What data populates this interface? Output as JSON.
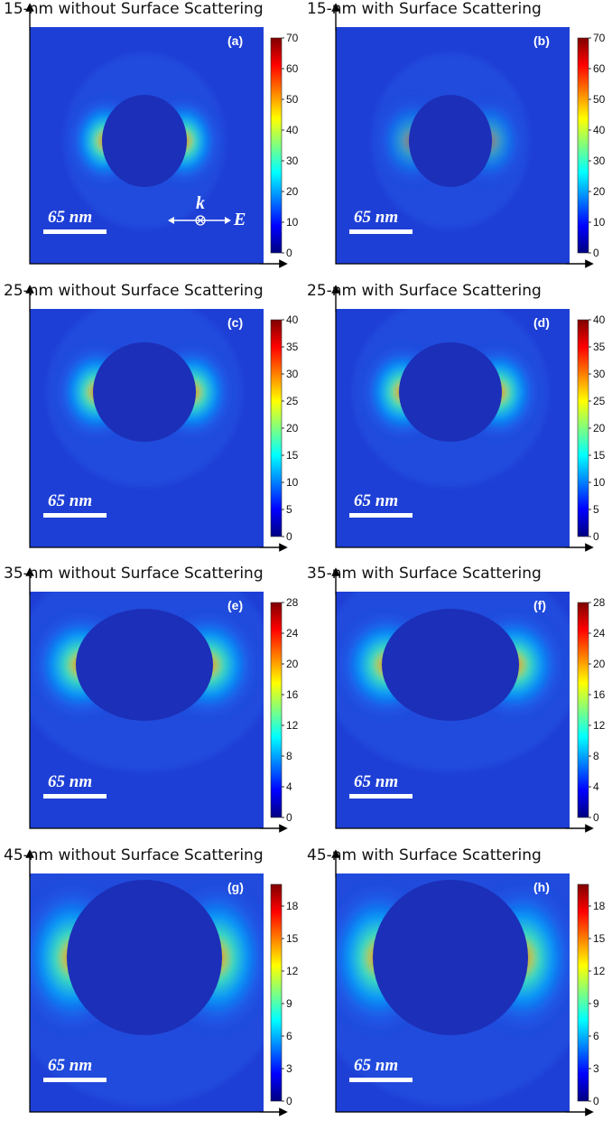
{
  "chart_data": [
    {
      "type": "heatmap",
      "id": "a",
      "title": "15-nm without Surface Scattering",
      "panel_label": "(a)",
      "scale_bar": "65 nm",
      "colorbar_ticks": [
        0,
        10,
        20,
        30,
        40,
        50,
        60,
        70
      ],
      "zlim": [
        0,
        70
      ],
      "polarization": {
        "k": "k",
        "E": "E"
      }
    },
    {
      "type": "heatmap",
      "id": "b",
      "title": "15-nm with Surface Scattering",
      "panel_label": "(b)",
      "scale_bar": "65 nm",
      "colorbar_ticks": [
        0,
        10,
        20,
        30,
        40,
        50,
        60,
        70
      ],
      "zlim": [
        0,
        70
      ]
    },
    {
      "type": "heatmap",
      "id": "c",
      "title": "25-nm without Surface Scattering",
      "panel_label": "(c)",
      "scale_bar": "65 nm",
      "colorbar_ticks": [
        0,
        5,
        10,
        15,
        20,
        25,
        30,
        35,
        40
      ],
      "zlim": [
        0,
        40
      ]
    },
    {
      "type": "heatmap",
      "id": "d",
      "title": "25-nm with Surface Scattering",
      "panel_label": "(d)",
      "scale_bar": "65 nm",
      "colorbar_ticks": [
        0,
        5,
        10,
        15,
        20,
        25,
        30,
        35,
        40
      ],
      "zlim": [
        0,
        40
      ]
    },
    {
      "type": "heatmap",
      "id": "e",
      "title": "35-nm without Surface Scattering",
      "panel_label": "(e)",
      "scale_bar": "65 nm",
      "colorbar_ticks": [
        0,
        4,
        8,
        12,
        16,
        20,
        24,
        28
      ],
      "zlim": [
        0,
        28
      ]
    },
    {
      "type": "heatmap",
      "id": "f",
      "title": "35-nm with Surface Scattering",
      "panel_label": "(f)",
      "scale_bar": "65 nm",
      "colorbar_ticks": [
        0,
        4,
        8,
        12,
        16,
        20,
        24,
        28
      ],
      "zlim": [
        0,
        28
      ]
    },
    {
      "type": "heatmap",
      "id": "g",
      "title": "45-nm without Surface Scattering",
      "panel_label": "(g)",
      "scale_bar": "65 nm",
      "colorbar_ticks": [
        0,
        3,
        6,
        9,
        12,
        15,
        18
      ],
      "zlim": [
        0,
        20
      ]
    },
    {
      "type": "heatmap",
      "id": "h",
      "title": "45-nm with Surface Scattering",
      "panel_label": "(h)",
      "scale_bar": "65 nm",
      "colorbar_ticks": [
        0,
        3,
        6,
        9,
        12,
        15,
        18
      ],
      "zlim": [
        0,
        20
      ]
    }
  ],
  "colors": {
    "low": "#00007f",
    "background_field": "#1e3fd6",
    "particle": "#1c2fb8",
    "high": "#7f0000"
  }
}
